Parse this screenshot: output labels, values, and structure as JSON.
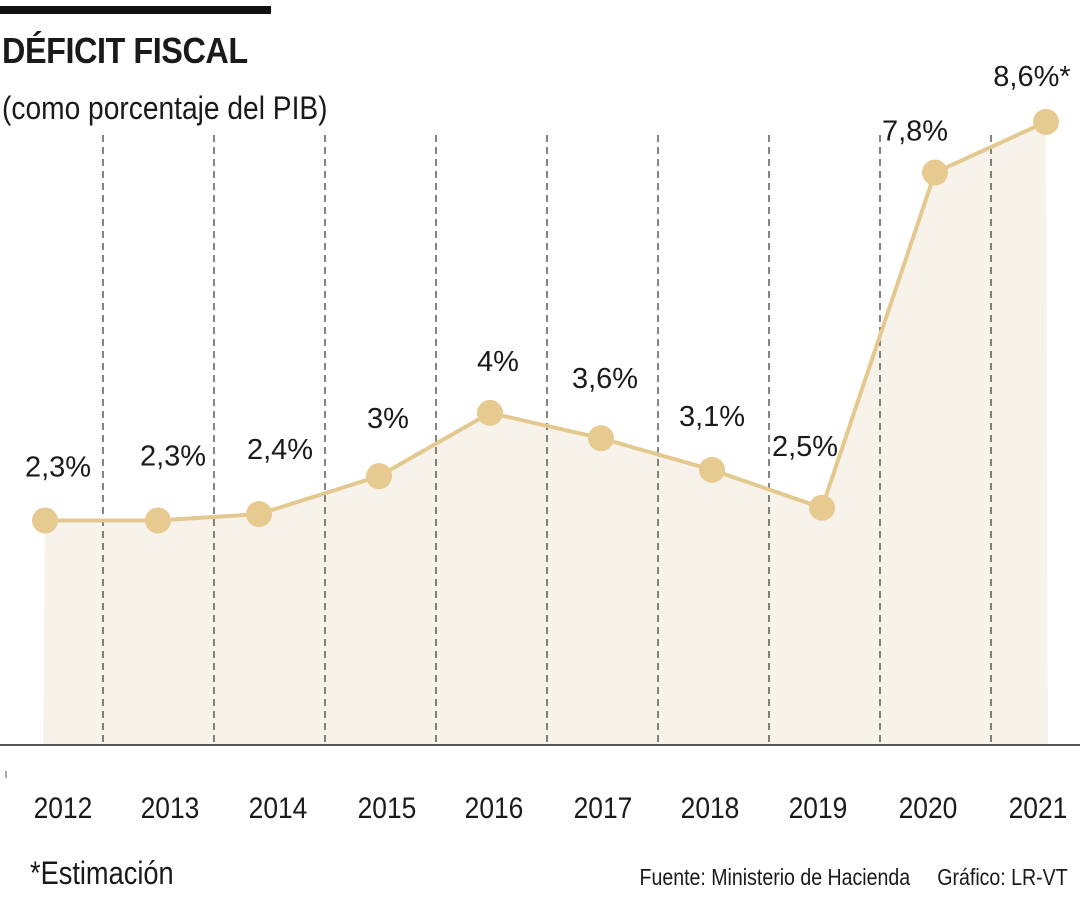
{
  "chart_data": {
    "type": "area",
    "title": "DÉFICIT FISCAL",
    "subtitle": "(como porcentaje del PIB)",
    "categories": [
      "2012",
      "2013",
      "2014",
      "2015",
      "2016",
      "2017",
      "2018",
      "2019",
      "2020",
      "2021"
    ],
    "values": [
      2.3,
      2.3,
      2.4,
      3.0,
      4.0,
      3.6,
      3.1,
      2.5,
      7.8,
      8.6
    ],
    "data_labels": [
      "2,3%",
      "2,3%",
      "2,4%",
      "3%",
      "4%",
      "3,6%",
      "3,1%",
      "2,5%",
      "7,8%",
      "8,6%*"
    ],
    "xlabel": "",
    "ylabel": "",
    "ylim": [
      -1.25,
      9.5
    ],
    "grid": "vertical dashed separators",
    "legend": "none",
    "colors": {
      "line": "#e3c98f",
      "point": "#e6ca90",
      "area": "#f8f3ea",
      "grid": "#333333"
    }
  },
  "footer": {
    "note": "*Estimación",
    "source": "Fuente: Ministerio de Hacienda     Gráfico: LR-VT"
  }
}
